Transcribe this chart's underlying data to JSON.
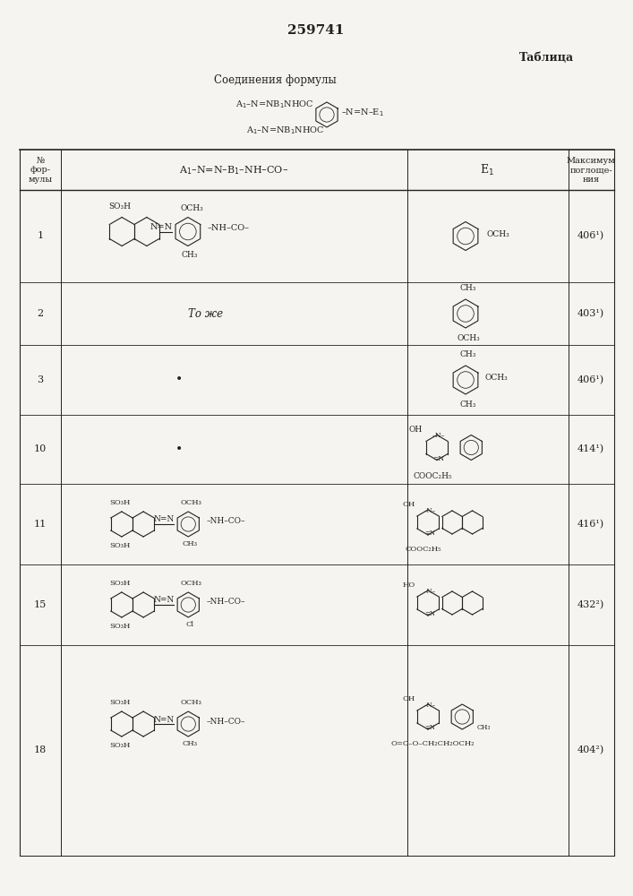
{
  "title": "259741",
  "subtitle": "Таблица",
  "formula_title": "Соединения формулы",
  "background_color": "#f5f4f0",
  "text_color": "#222222",
  "page_width": 7.07,
  "page_height": 10.0,
  "row_nums": [
    "1",
    "2",
    "3",
    "10",
    "11",
    "15",
    "18"
  ],
  "row_maxabs": [
    "406¹)",
    "403¹)",
    "406¹)",
    "414¹)",
    "416¹)",
    "432²)",
    "404²)"
  ]
}
